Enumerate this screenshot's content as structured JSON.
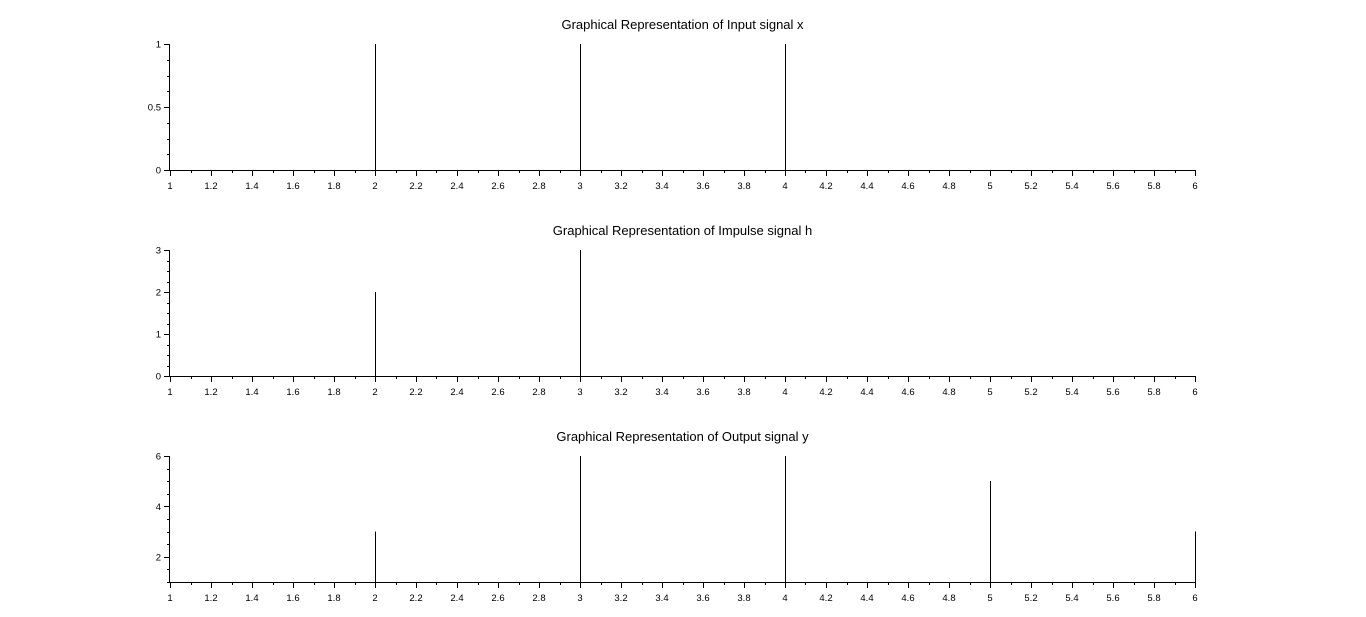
{
  "chart_data": [
    {
      "type": "stem",
      "title": "Graphical Representation of Input signal x",
      "xlabel": "",
      "ylabel": "",
      "xlim": [
        1,
        6
      ],
      "ylim": [
        0,
        1
      ],
      "x_ticks": [
        "1",
        "1.2",
        "1.4",
        "1.6",
        "1.8",
        "2",
        "2.2",
        "2.4",
        "2.6",
        "2.8",
        "3",
        "3.2",
        "3.4",
        "3.6",
        "3.8",
        "4",
        "4.2",
        "4.4",
        "4.6",
        "4.8",
        "5",
        "5.2",
        "5.4",
        "5.6",
        "5.8",
        "6"
      ],
      "y_ticks": [
        "0",
        "0.5",
        "1"
      ],
      "x": [
        2,
        3,
        4
      ],
      "y": [
        1,
        1,
        1
      ],
      "grid": false
    },
    {
      "type": "stem",
      "title": "Graphical Representation of Impulse signal h",
      "xlabel": "",
      "ylabel": "",
      "xlim": [
        1,
        6
      ],
      "ylim": [
        0,
        3
      ],
      "x_ticks": [
        "1",
        "1.2",
        "1.4",
        "1.6",
        "1.8",
        "2",
        "2.2",
        "2.4",
        "2.6",
        "2.8",
        "3",
        "3.2",
        "3.4",
        "3.6",
        "3.8",
        "4",
        "4.2",
        "4.4",
        "4.6",
        "4.8",
        "5",
        "5.2",
        "5.4",
        "5.6",
        "5.8",
        "6"
      ],
      "y_ticks": [
        "0",
        "1",
        "2",
        "3"
      ],
      "x": [
        2,
        3
      ],
      "y": [
        2,
        3
      ],
      "grid": false
    },
    {
      "type": "stem",
      "title": "Graphical Representation of Output signal y",
      "xlabel": "",
      "ylabel": "",
      "xlim": [
        1,
        6
      ],
      "ylim": [
        1,
        6
      ],
      "x_ticks": [
        "1",
        "1.2",
        "1.4",
        "1.6",
        "1.8",
        "2",
        "2.2",
        "2.4",
        "2.6",
        "2.8",
        "3",
        "3.2",
        "3.4",
        "3.6",
        "3.8",
        "4",
        "4.2",
        "4.4",
        "4.6",
        "4.8",
        "5",
        "5.2",
        "5.4",
        "5.6",
        "5.8",
        "6"
      ],
      "y_ticks": [
        "2",
        "4",
        "6"
      ],
      "x": [
        2,
        3,
        4,
        5,
        6
      ],
      "y": [
        3,
        6,
        6,
        5,
        3
      ],
      "grid": false
    }
  ]
}
